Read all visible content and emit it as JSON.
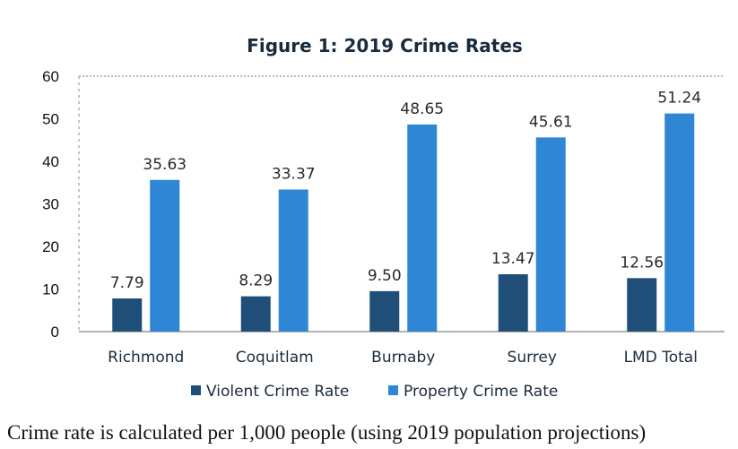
{
  "chart_data": {
    "type": "bar",
    "title": "Figure 1: 2019 Crime Rates",
    "categories": [
      "Richmond",
      "Coquitlam",
      "Burnaby",
      "Surrey",
      "LMD Total"
    ],
    "series": [
      {
        "name": "Violent Crime Rate",
        "values": [
          7.79,
          8.29,
          9.5,
          13.47,
          12.56
        ],
        "labels": [
          "7.79",
          "8.29",
          "9.50",
          "13.47",
          "12.56"
        ],
        "color": "#1f4e79"
      },
      {
        "name": "Property Crime Rate",
        "values": [
          35.63,
          33.37,
          48.65,
          45.61,
          51.24
        ],
        "labels": [
          "35.63",
          "33.37",
          "48.65",
          "45.61",
          "51.24"
        ],
        "color": "#2e86d4"
      }
    ],
    "ylim": [
      0,
      60
    ],
    "yticks": [
      0,
      10,
      20,
      30,
      40,
      50,
      60
    ],
    "ytick_labels": [
      "0",
      "10",
      "20",
      "30",
      "40",
      "50",
      "60"
    ],
    "legend_position": "bottom",
    "grid": false
  },
  "caption": "Crime rate is calculated per 1,000 people (using 2019 population projections)"
}
